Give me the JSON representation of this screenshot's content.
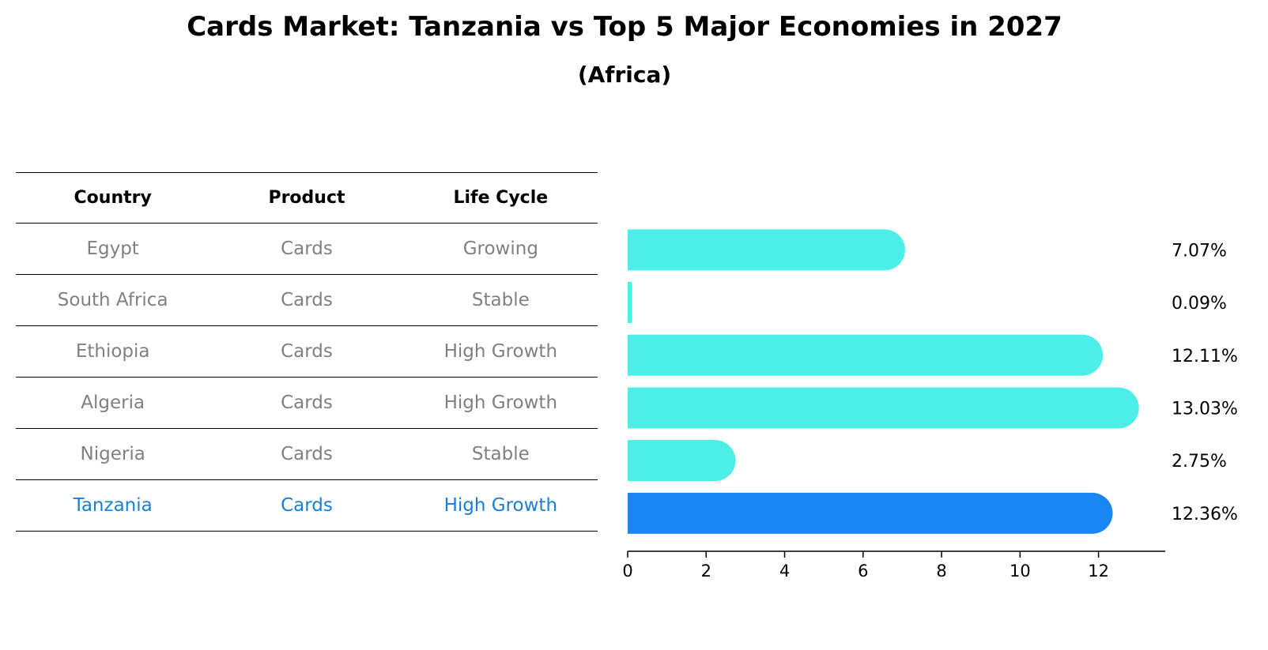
{
  "title": "Cards Market: Tanzania vs Top 5 Major Economies in 2027",
  "subtitle": "(Africa)",
  "table": {
    "headers": [
      "Country",
      "Product",
      "Life Cycle"
    ],
    "rows": [
      {
        "country": "Egypt",
        "product": "Cards",
        "life_cycle": "Growing"
      },
      {
        "country": "South Africa",
        "product": "Cards",
        "life_cycle": "Stable"
      },
      {
        "country": "Ethiopia",
        "product": "Cards",
        "life_cycle": "High Growth"
      },
      {
        "country": "Algeria",
        "product": "Cards",
        "life_cycle": "High Growth"
      },
      {
        "country": "Nigeria",
        "product": "Cards",
        "life_cycle": "Stable"
      },
      {
        "country": "Tanzania",
        "product": "Cards",
        "life_cycle": "High Growth"
      }
    ]
  },
  "chart_data": {
    "type": "bar",
    "orientation": "horizontal",
    "categories": [
      "Egypt",
      "South Africa",
      "Ethiopia",
      "Algeria",
      "Nigeria",
      "Tanzania"
    ],
    "values": [
      7.07,
      0.09,
      12.11,
      13.03,
      2.75,
      12.36
    ],
    "value_labels": [
      "7.07%",
      "0.09%",
      "12.11%",
      "13.03%",
      "2.75%",
      "12.36%"
    ],
    "highlight": "Tanzania",
    "xticks": [
      0,
      2,
      4,
      6,
      8,
      10,
      12
    ],
    "xlim": [
      0,
      13.7
    ],
    "colors": {
      "default": "#4deee8",
      "highlight": "#1a85f5"
    }
  }
}
